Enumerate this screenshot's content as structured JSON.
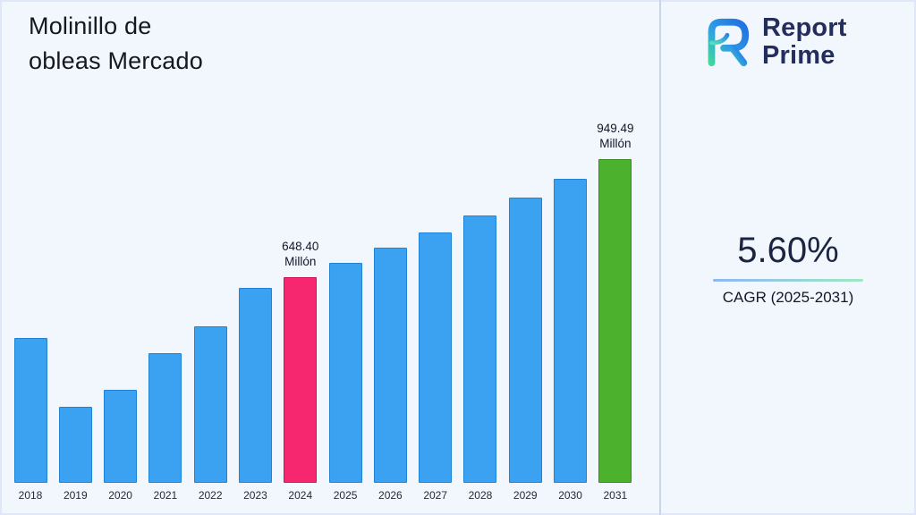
{
  "header": {
    "title_lines": [
      "Molinillo de",
      "obleas Mercado"
    ]
  },
  "logo": {
    "line1": "Report",
    "line2": "Prime"
  },
  "cagr": {
    "value": "5.60%",
    "label": "CAGR (2025-2031)"
  },
  "colors": {
    "blue": {
      "fill": "#3BA2F2",
      "border": "#1f82d4"
    },
    "pink": {
      "fill": "#F6276E",
      "border": "#d11254"
    },
    "green": {
      "fill": "#4CB22E",
      "border": "#368c1d"
    },
    "accent_navy": "#242E5C",
    "divider": "#c9d6ea"
  },
  "chart_data": {
    "type": "bar",
    "title": "Molinillo de obleas Mercado",
    "unit": "Millón",
    "categories": [
      "2018",
      "2019",
      "2020",
      "2021",
      "2022",
      "2023",
      "2024",
      "2025",
      "2026",
      "2027",
      "2028",
      "2029",
      "2030",
      "2031"
    ],
    "values": [
      493,
      318,
      361,
      455,
      523,
      621,
      648.4,
      684.7,
      723.1,
      763.6,
      806.3,
      851.5,
      899.2,
      949.49
    ],
    "highlights": {
      "6": "pink",
      "13": "green"
    },
    "annotations": {
      "6": [
        "648.40",
        "Millón"
      ],
      "13": [
        "949.49",
        "Millón"
      ]
    },
    "legend": "none",
    "grid": false,
    "note_labeled_values": "Only 2024 (648.40 Millón) and 2031 (949.49 Millón) are labeled; other values estimated from bar heights"
  }
}
